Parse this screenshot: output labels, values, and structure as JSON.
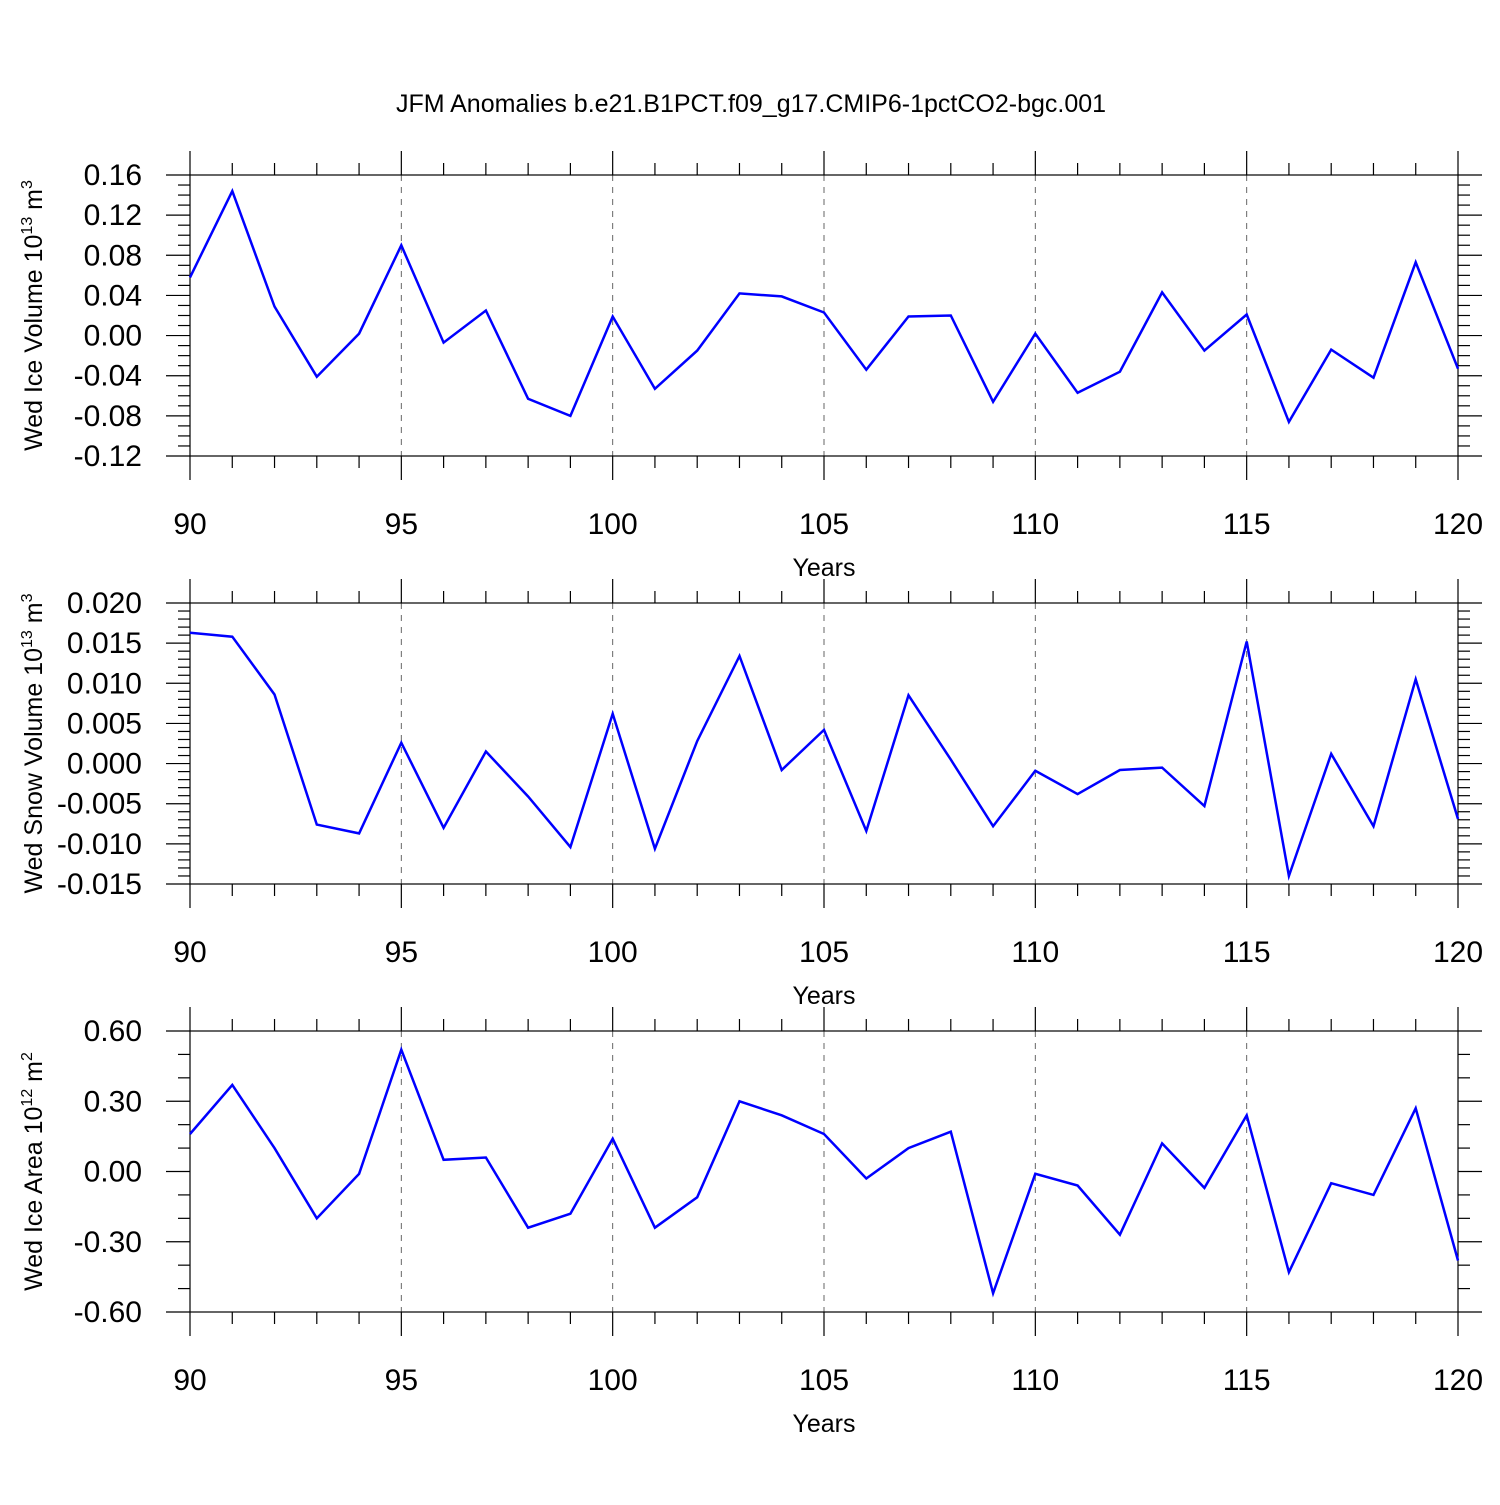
{
  "title": "JFM Anomalies b.e21.B1PCT.f09_g17.CMIP6-1pctCO2-bgc.001",
  "colors": {
    "line": "#0000ff",
    "axis": "#000000",
    "grid": "#666666"
  },
  "chart_data": [
    {
      "type": "line",
      "name": "ice-volume",
      "ylabel": "Wed Ice Volume 10",
      "ylabel_sup": "13",
      "ylabel_unit": " m",
      "ylabel_unit_sup": "3",
      "xlabel": "Years",
      "xlim": [
        90,
        120
      ],
      "ylim": [
        -0.12,
        0.16
      ],
      "xticks": [
        90,
        95,
        100,
        105,
        110,
        115,
        120
      ],
      "xtick_labels": [
        "90",
        "95",
        "100",
        "105",
        "110",
        "115",
        "120"
      ],
      "yticks": [
        -0.12,
        -0.08,
        -0.04,
        0.0,
        0.04,
        0.08,
        0.12,
        0.16
      ],
      "ytick_labels": [
        "-0.12",
        "-0.08",
        "-0.04",
        "0.00",
        "0.04",
        "0.08",
        "0.12",
        "0.16"
      ],
      "yminor_step": 0.01,
      "grid_x": true,
      "x": [
        90,
        91,
        92,
        93,
        94,
        95,
        96,
        97,
        98,
        99,
        100,
        101,
        102,
        103,
        104,
        105,
        106,
        107,
        108,
        109,
        110,
        111,
        112,
        113,
        114,
        115,
        116,
        117,
        118,
        119,
        120
      ],
      "values": [
        0.058,
        0.144,
        0.029,
        -0.041,
        0.002,
        0.09,
        -0.007,
        0.025,
        -0.063,
        -0.08,
        0.019,
        -0.053,
        -0.015,
        0.042,
        0.039,
        0.023,
        -0.034,
        0.019,
        0.02,
        -0.066,
        0.002,
        -0.057,
        -0.036,
        0.043,
        -0.015,
        0.021,
        -0.086,
        -0.014,
        -0.042,
        0.073,
        -0.033
      ]
    },
    {
      "type": "line",
      "name": "snow-volume",
      "ylabel": "Wed Snow Volume 10",
      "ylabel_sup": "13",
      "ylabel_unit": " m",
      "ylabel_unit_sup": "3",
      "xlabel": "Years",
      "xlim": [
        90,
        120
      ],
      "ylim": [
        -0.015,
        0.02
      ],
      "xticks": [
        90,
        95,
        100,
        105,
        110,
        115,
        120
      ],
      "xtick_labels": [
        "90",
        "95",
        "100",
        "105",
        "110",
        "115",
        "120"
      ],
      "yticks": [
        -0.015,
        -0.01,
        -0.005,
        0.0,
        0.005,
        0.01,
        0.015,
        0.02
      ],
      "ytick_labels": [
        "-0.015",
        "-0.010",
        "-0.005",
        "0.000",
        "0.005",
        "0.010",
        "0.015",
        "0.020"
      ],
      "yminor_step": 0.001,
      "grid_x": true,
      "x": [
        90,
        91,
        92,
        93,
        94,
        95,
        96,
        97,
        98,
        99,
        100,
        101,
        102,
        103,
        104,
        105,
        106,
        107,
        108,
        109,
        110,
        111,
        112,
        113,
        114,
        115,
        116,
        117,
        118,
        119,
        120
      ],
      "values": [
        0.0163,
        0.0158,
        0.0086,
        -0.0076,
        -0.0087,
        0.0026,
        -0.008,
        0.0015,
        -0.0041,
        -0.0104,
        0.0062,
        -0.0106,
        0.0028,
        0.0134,
        -0.0008,
        0.0042,
        -0.0084,
        0.0085,
        0.0005,
        -0.0078,
        -0.0009,
        -0.0038,
        -0.0008,
        -0.0005,
        -0.0053,
        0.0152,
        -0.014,
        0.0012,
        -0.0078,
        0.0105,
        -0.0069
      ]
    },
    {
      "type": "line",
      "name": "ice-area",
      "ylabel": "Wed Ice Area 10",
      "ylabel_sup": "12",
      "ylabel_unit": " m",
      "ylabel_unit_sup": "2",
      "xlabel": "Years",
      "xlim": [
        90,
        120
      ],
      "ylim": [
        -0.6,
        0.6
      ],
      "xticks": [
        90,
        95,
        100,
        105,
        110,
        115,
        120
      ],
      "xtick_labels": [
        "90",
        "95",
        "100",
        "105",
        "110",
        "115",
        "120"
      ],
      "yticks": [
        -0.6,
        -0.3,
        0.0,
        0.3,
        0.6
      ],
      "ytick_labels": [
        "-0.60",
        "-0.30",
        "0.00",
        "0.30",
        "0.60"
      ],
      "yminor_step": 0.1,
      "grid_x": true,
      "x": [
        90,
        91,
        92,
        93,
        94,
        95,
        96,
        97,
        98,
        99,
        100,
        101,
        102,
        103,
        104,
        105,
        106,
        107,
        108,
        109,
        110,
        111,
        112,
        113,
        114,
        115,
        116,
        117,
        118,
        119,
        120
      ],
      "values": [
        0.16,
        0.37,
        0.1,
        -0.2,
        -0.01,
        0.52,
        0.05,
        0.06,
        -0.24,
        -0.18,
        0.14,
        -0.24,
        -0.11,
        0.3,
        0.24,
        0.16,
        -0.03,
        0.1,
        0.17,
        -0.52,
        -0.01,
        -0.06,
        -0.27,
        0.12,
        -0.07,
        0.24,
        -0.43,
        -0.05,
        -0.1,
        0.27,
        -0.38
      ]
    }
  ]
}
